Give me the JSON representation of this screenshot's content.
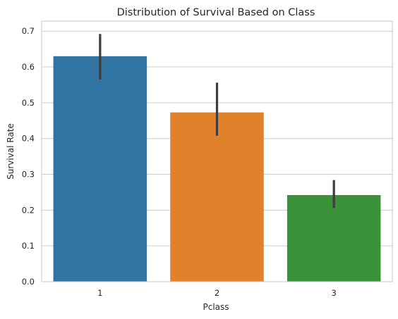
{
  "chart_data": {
    "type": "bar",
    "title": "Distribution of Survival Based on Class",
    "xlabel": "Pclass",
    "ylabel": "Survival Rate",
    "categories": [
      "1",
      "2",
      "3"
    ],
    "values": [
      0.63,
      0.473,
      0.242
    ],
    "error_bars": [
      {
        "low": 0.565,
        "high": 0.692
      },
      {
        "low": 0.408,
        "high": 0.556
      },
      {
        "low": 0.206,
        "high": 0.284
      }
    ],
    "colors": [
      "#3274a1",
      "#e1812c",
      "#3a923a"
    ],
    "error_color": "#3d3d3d",
    "ylim": [
      0,
      0.728
    ],
    "yticks": [
      0.0,
      0.1,
      0.2,
      0.3,
      0.4,
      0.5,
      0.6,
      0.7
    ],
    "ytick_labels": [
      "0.0",
      "0.1",
      "0.2",
      "0.3",
      "0.4",
      "0.5",
      "0.6",
      "0.7"
    ],
    "grid": "horizontal",
    "legend": "none"
  }
}
